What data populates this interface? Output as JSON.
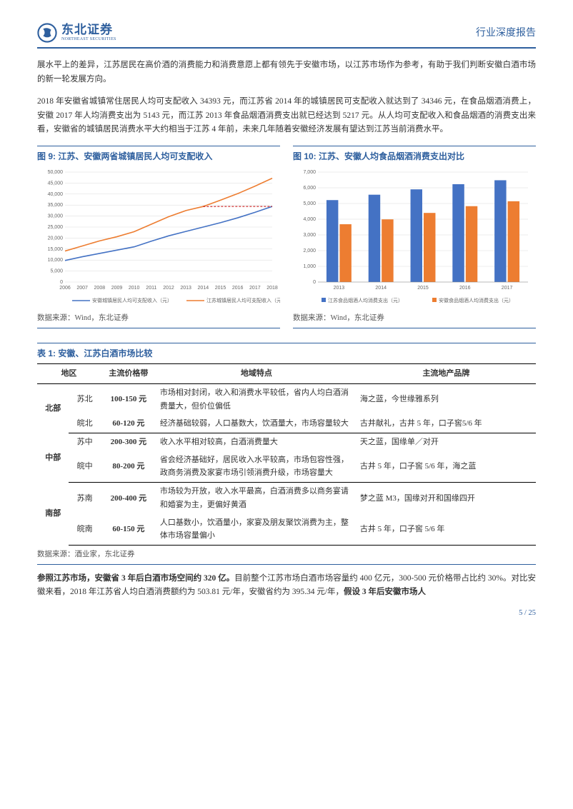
{
  "header": {
    "brand_cn": "东北证券",
    "brand_en": "NORTHEAST SECURITIES",
    "right": "行业深度报告"
  },
  "para1": "展水平上的差异，江苏居民在高价酒的消费能力和消费意愿上都有领先于安徽市场，以江苏市场作为参考，有助于我们判断安徽白酒市场的新一轮发展方向。",
  "para2": "2018 年安徽省城镇常住居民人均可支配收入 34393 元，而江苏省 2014 年的城镇居民可支配收入就达到了 34346 元，在食品烟酒消费上，安徽 2017 年人均消费支出为 5143 元，而江苏 2013 年食品烟酒消费支出就已经达到 5217 元。从人均可支配收入和食品烟酒的消费支出来看，安徽省的城镇居民消费水平大约相当于江苏 4 年前，未来几年随着安徽经济发展有望达到江苏当前消费水平。",
  "chart9": {
    "title": "图 9: 江苏、安徽两省城镇居民人均可支配收入",
    "type": "line",
    "years": [
      "2006",
      "2007",
      "2008",
      "2009",
      "2010",
      "2011",
      "2012",
      "2013",
      "2014",
      "2015",
      "2016",
      "2017",
      "2018"
    ],
    "anhui": [
      9800,
      11500,
      13000,
      14500,
      16000,
      18600,
      21000,
      23000,
      25000,
      27000,
      29200,
      31700,
      34393
    ],
    "jiangsu": [
      14100,
      16400,
      18700,
      20600,
      22900,
      26300,
      29700,
      32500,
      34346,
      37200,
      40200,
      43600,
      47200
    ],
    "ylim": [
      0,
      50000
    ],
    "ystep": 5000,
    "colors": {
      "anhui": "#4472c4",
      "jiangsu": "#ed7d31",
      "grid": "#d9d9d9",
      "axis": "#888",
      "ref": "#c00000"
    },
    "legend": [
      "安徽城镇居民人均可支配收入（元）",
      "江苏城镇居民人均可支配收入（元）"
    ],
    "src": "数据来源：Wind，东北证券"
  },
  "chart10": {
    "title": "图 10: 江苏、安徽人均食品烟酒消费支出对比",
    "type": "bar",
    "years": [
      "2013",
      "2014",
      "2015",
      "2016",
      "2017"
    ],
    "jiangsu": [
      5217,
      5560,
      5900,
      6230,
      6480
    ],
    "anhui": [
      3680,
      3990,
      4400,
      4830,
      5143
    ],
    "ylim": [
      0,
      7000
    ],
    "ystep": 1000,
    "colors": {
      "jiangsu": "#4472c4",
      "anhui": "#ed7d31",
      "grid": "#d9d9d9",
      "axis": "#888"
    },
    "legend": [
      "江苏食品烟酒人均消费支出（元）",
      "安徽食品烟酒人均消费支出（元）"
    ],
    "src": "数据来源：Wind，东北证券"
  },
  "table": {
    "title": "表 1: 安徽、江苏白酒市场比较",
    "cols": [
      "地区",
      "",
      "主流价格带",
      "地域特点",
      "主流地产品牌"
    ],
    "rows": [
      {
        "region": "北部",
        "sub": "苏北",
        "price": "100-150 元",
        "feat": "市场相对封闭，收入和消费水平较低，省内人均白酒消费量大，但价位偏低",
        "brand": "海之蓝，今世缘雅系列"
      },
      {
        "region": "",
        "sub": "皖北",
        "price": "60-120 元",
        "feat": "经济基础较弱，人口基数大，饮酒量大，市场容量较大",
        "brand": "古井献礼，古井 5 年，口子窖5/6 年"
      },
      {
        "region": "中部",
        "sub": "苏中",
        "price": "200-300 元",
        "feat": "收入水平相对较高，白酒消费量大",
        "brand": "天之蓝，国缘单／对开"
      },
      {
        "region": "",
        "sub": "皖中",
        "price": "80-200 元",
        "feat": "省会经济基础好，居民收入水平较高，市场包容性强，政商务消费及家宴市场引领消费升级，市场容量大",
        "brand": "古井 5 年，口子窖 5/6 年，海之蓝"
      },
      {
        "region": "南部",
        "sub": "苏南",
        "price": "200-400 元",
        "feat": "市场较为开放，收入水平最高，白酒消费多以商务宴请和婚宴为主，更偏好黄酒",
        "brand": "梦之蓝 M3，国缘对开和国缘四开"
      },
      {
        "region": "",
        "sub": "皖南",
        "price": "60-150 元",
        "feat": "人口基数小，饮酒量小，家宴及朋友聚饮消费为主，整体市场容量偏小",
        "brand": "古井 5 年，口子窖 5/6 年"
      }
    ],
    "src": "数据来源：酒业家，东北证券"
  },
  "para3": {
    "bold1": "参照江苏市场，安徽省 3 年后白酒市场空间约 320 亿。",
    "mid": "目前整个江苏市场白酒市场容量约 400 亿元，300-500 元价格带占比约 30%。对比安徽来看，2018 年江苏省人均白酒消费额约为 503.81 元/年，安徽省约为 395.34 元/年，",
    "bold2": "假设 3 年后安徽市场人"
  },
  "footer": "5 / 25"
}
